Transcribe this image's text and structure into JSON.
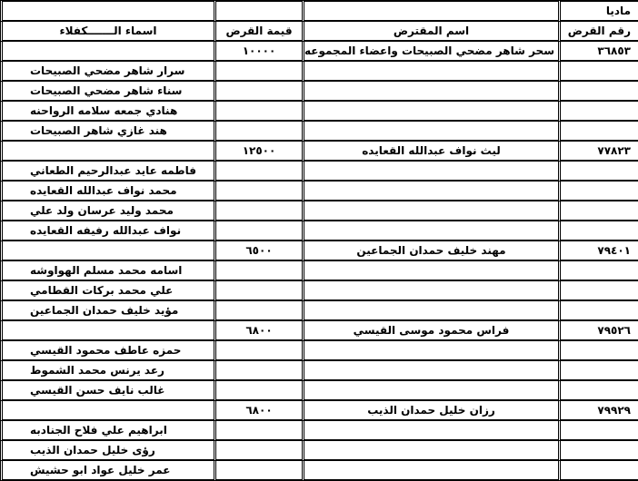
{
  "top_label": "ماديا",
  "headers": {
    "loan_number": "رقم القرض",
    "borrower": "اسم المقترض",
    "loan_value": "قيمة القرض",
    "guarantors": "اسماء الـــــــكفلاء"
  },
  "loans": [
    {
      "number": "٣٦٨٥٣",
      "borrower": "سحر شاهر مضحي الصبيحات واعضاء المجموعه",
      "value": "١٠٠٠٠",
      "guarantors": [
        "سرار شاهر مضحي الصبيحات",
        "سناء شاهر مضحي الصبيحات",
        "هنادي جمعه سلامه الرواحنه",
        "هند غازي شاهر الصبيحات"
      ]
    },
    {
      "number": "٧٧٨٢٣",
      "borrower": "ليث نواف عبدالله القعايده",
      "value": "١٢٥٠٠",
      "guarantors": [
        "فاطمه عايد عبدالرحيم الطعاني",
        "محمد نواف عبدالله القعايده",
        "محمد وليد عرسان ولد علي",
        "نواف عبدالله رفيفه القعايده"
      ]
    },
    {
      "number": "٧٩٤٠١",
      "borrower": "مهند خليف حمدان الجماعين",
      "value": "٦٥٠٠",
      "guarantors": [
        "اسامه محمد مسلم الهواوشه",
        "علي محمد بركات القطامي",
        "مؤيد خليف حمدان الجماعين"
      ]
    },
    {
      "number": "٧٩٥٢٦",
      "borrower": "فراس محمود موسى القيسي",
      "value": "٦٨٠٠",
      "guarantors": [
        "حمزه عاطف محمود القيسي",
        "رعد يرنس محمد الشموط",
        "غالب نايف حسن القيسي"
      ]
    },
    {
      "number": "٧٩٩٢٩",
      "borrower": "رزان خليل حمدان الذيب",
      "value": "٦٨٠٠",
      "guarantors": [
        "ابراهيم علي فلاح الجنادبه",
        "رؤى خليل حمدان الذيب",
        "عمر خليل عواد ابو حشيش"
      ]
    }
  ]
}
